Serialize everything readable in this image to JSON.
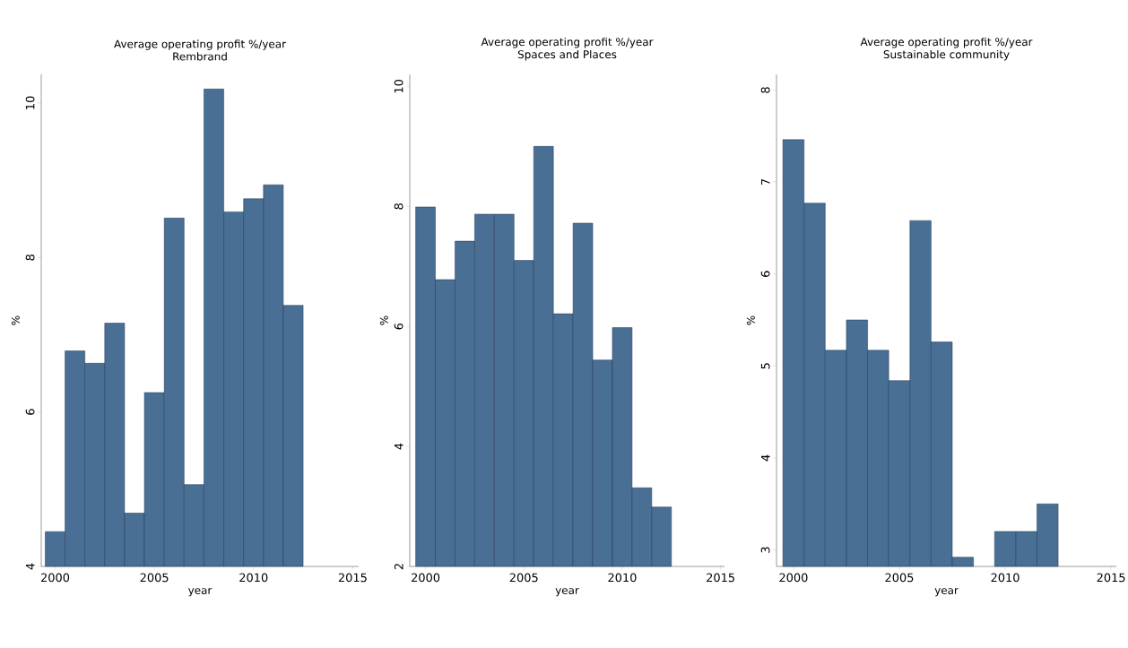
{
  "chart_data": [
    {
      "type": "histogram",
      "title": "Average operating profit %/year",
      "subtitle": "Rembrand",
      "xlabel": "year",
      "ylabel": "%",
      "color": "#4a6f94",
      "bins": [
        1999.5,
        2000.5,
        2001.5,
        2002.5,
        2003.5,
        2004.5,
        2005.5,
        2006.5,
        2007.5,
        2008.5,
        2009.5,
        2010.5,
        2011.5,
        2012.5
      ],
      "values": [
        4.45,
        6.79,
        6.63,
        7.15,
        4.69,
        6.25,
        8.51,
        5.06,
        10.18,
        8.59,
        8.76,
        8.94,
        7.38
      ],
      "xlim": [
        1999.3,
        2015.3
      ],
      "ylim": [
        4,
        10.37
      ],
      "xticks": [
        2000,
        2005,
        2010,
        2015
      ],
      "yticks": [
        4,
        6,
        8,
        10
      ]
    },
    {
      "type": "histogram",
      "title": "Average operating profit %/year",
      "subtitle": "Spaces and Places",
      "xlabel": "year",
      "ylabel": "%",
      "color": "#4a6f94",
      "bins": [
        1999.5,
        2000.5,
        2001.5,
        2002.5,
        2003.5,
        2004.5,
        2005.5,
        2006.5,
        2007.5,
        2008.5,
        2009.5,
        2010.5,
        2011.5,
        2012.5
      ],
      "values": [
        7.99,
        6.78,
        7.42,
        7.87,
        7.87,
        7.1,
        9.0,
        6.21,
        7.72,
        5.44,
        5.98,
        3.31,
        2.99
      ],
      "xlim": [
        1999.2,
        2015.2
      ],
      "ylim": [
        2,
        10.2
      ],
      "xticks": [
        2000,
        2005,
        2010,
        2015
      ],
      "yticks": [
        2,
        4,
        6,
        8,
        10
      ]
    },
    {
      "type": "histogram",
      "title": "Average operating profit %/year",
      "subtitle": "Sustainable community",
      "xlabel": "year",
      "ylabel": "%",
      "color": "#4a6f94",
      "bins": [
        1999.5,
        2000.5,
        2001.5,
        2002.5,
        2003.5,
        2004.5,
        2005.5,
        2006.5,
        2007.5,
        2008.5,
        2009.5,
        2010.5,
        2011.5,
        2012.5
      ],
      "values": [
        7.46,
        6.77,
        5.17,
        5.5,
        5.17,
        4.84,
        6.58,
        5.26,
        2.92,
        null,
        3.2,
        3.2,
        3.5
      ],
      "xlim": [
        1999.2,
        2015.25
      ],
      "ylim": [
        2.82,
        8.17
      ],
      "xticks": [
        2000,
        2005,
        2010,
        2015
      ],
      "yticks": [
        3,
        4,
        5,
        6,
        7,
        8
      ]
    }
  ]
}
